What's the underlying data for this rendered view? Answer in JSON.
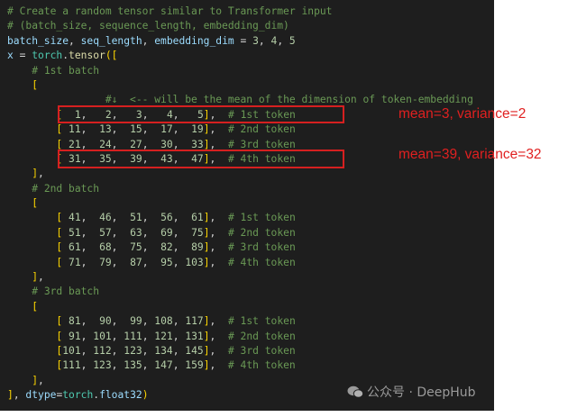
{
  "code_lines": [
    "# Create a random tensor similar to Transformer input",
    "# (batch_size, sequence_length, embedding_dim)",
    "batch_size, seq_length, embedding_dim = 3, 4, 5",
    "x = torch.tensor([",
    "    # 1st batch",
    "    [",
    "                #↓  <-- will be the mean of the dimension of token-embedding",
    "        [  1,   2,   3,   4,   5],  # 1st token",
    "        [ 11,  13,  15,  17,  19],  # 2nd token",
    "        [ 21,  24,  27,  30,  33],  # 3rd token",
    "        [ 31,  35,  39,  43,  47],  # 4th token",
    "    ],",
    "    # 2nd batch",
    "    [",
    "        [ 41,  46,  51,  56,  61],  # 1st token",
    "        [ 51,  57,  63,  69,  75],  # 2nd token",
    "        [ 61,  68,  75,  82,  89],  # 3rd token",
    "        [ 71,  79,  87,  95, 103],  # 4th token",
    "    ],",
    "    # 3rd batch",
    "    [",
    "        [ 81,  90,  99, 108, 117],  # 1st token",
    "        [ 91, 101, 111, 121, 131],  # 2nd token",
    "        [101, 112, 123, 134, 145],  # 3rd token",
    "        [111, 123, 135, 147, 159],  # 4th token",
    "    ],",
    "], dtype=torch.float32)"
  ],
  "annotations": {
    "first_token": "mean=3, variance=2",
    "fourth_token": "mean=39, variance=32",
    "color": "#e02020"
  },
  "watermark": {
    "icon": "wechat-icon",
    "text": "公众号 · DeepHub"
  }
}
